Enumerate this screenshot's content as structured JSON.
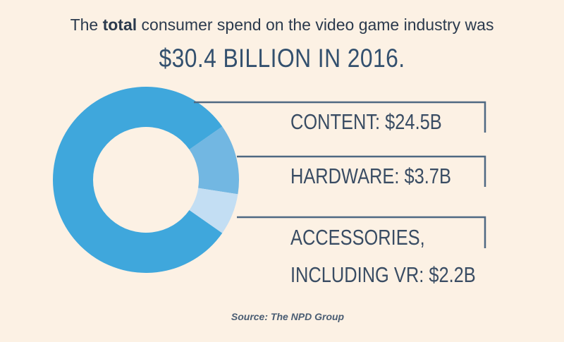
{
  "header": {
    "line1_pre": "The",
    "line1_bold": "total",
    "line1_post": "consumer spend on the video game industry was",
    "headline": "$30.4 BILLION IN 2016."
  },
  "chart_data": {
    "type": "pie",
    "donut": true,
    "categories": [
      "CONTENT",
      "HARDWARE",
      "ACCESSORIES, INCLUDING VR"
    ],
    "values": [
      24.5,
      3.7,
      2.2
    ],
    "unit": "billion USD",
    "labels": [
      [
        "CONTENT: $24.5B"
      ],
      [
        "HARDWARE: $3.7B"
      ],
      [
        "ACCESSORIES,",
        "INCLUDING VR: $2.2B"
      ]
    ],
    "colors": [
      "#3fa7dc",
      "#72b7e2",
      "#c3def3"
    ],
    "total": 30.4
  },
  "source": "Source: The NPD Group",
  "colors": {
    "background": "#fcf1e4",
    "text": "#33475f",
    "connector": "#4f6982"
  }
}
